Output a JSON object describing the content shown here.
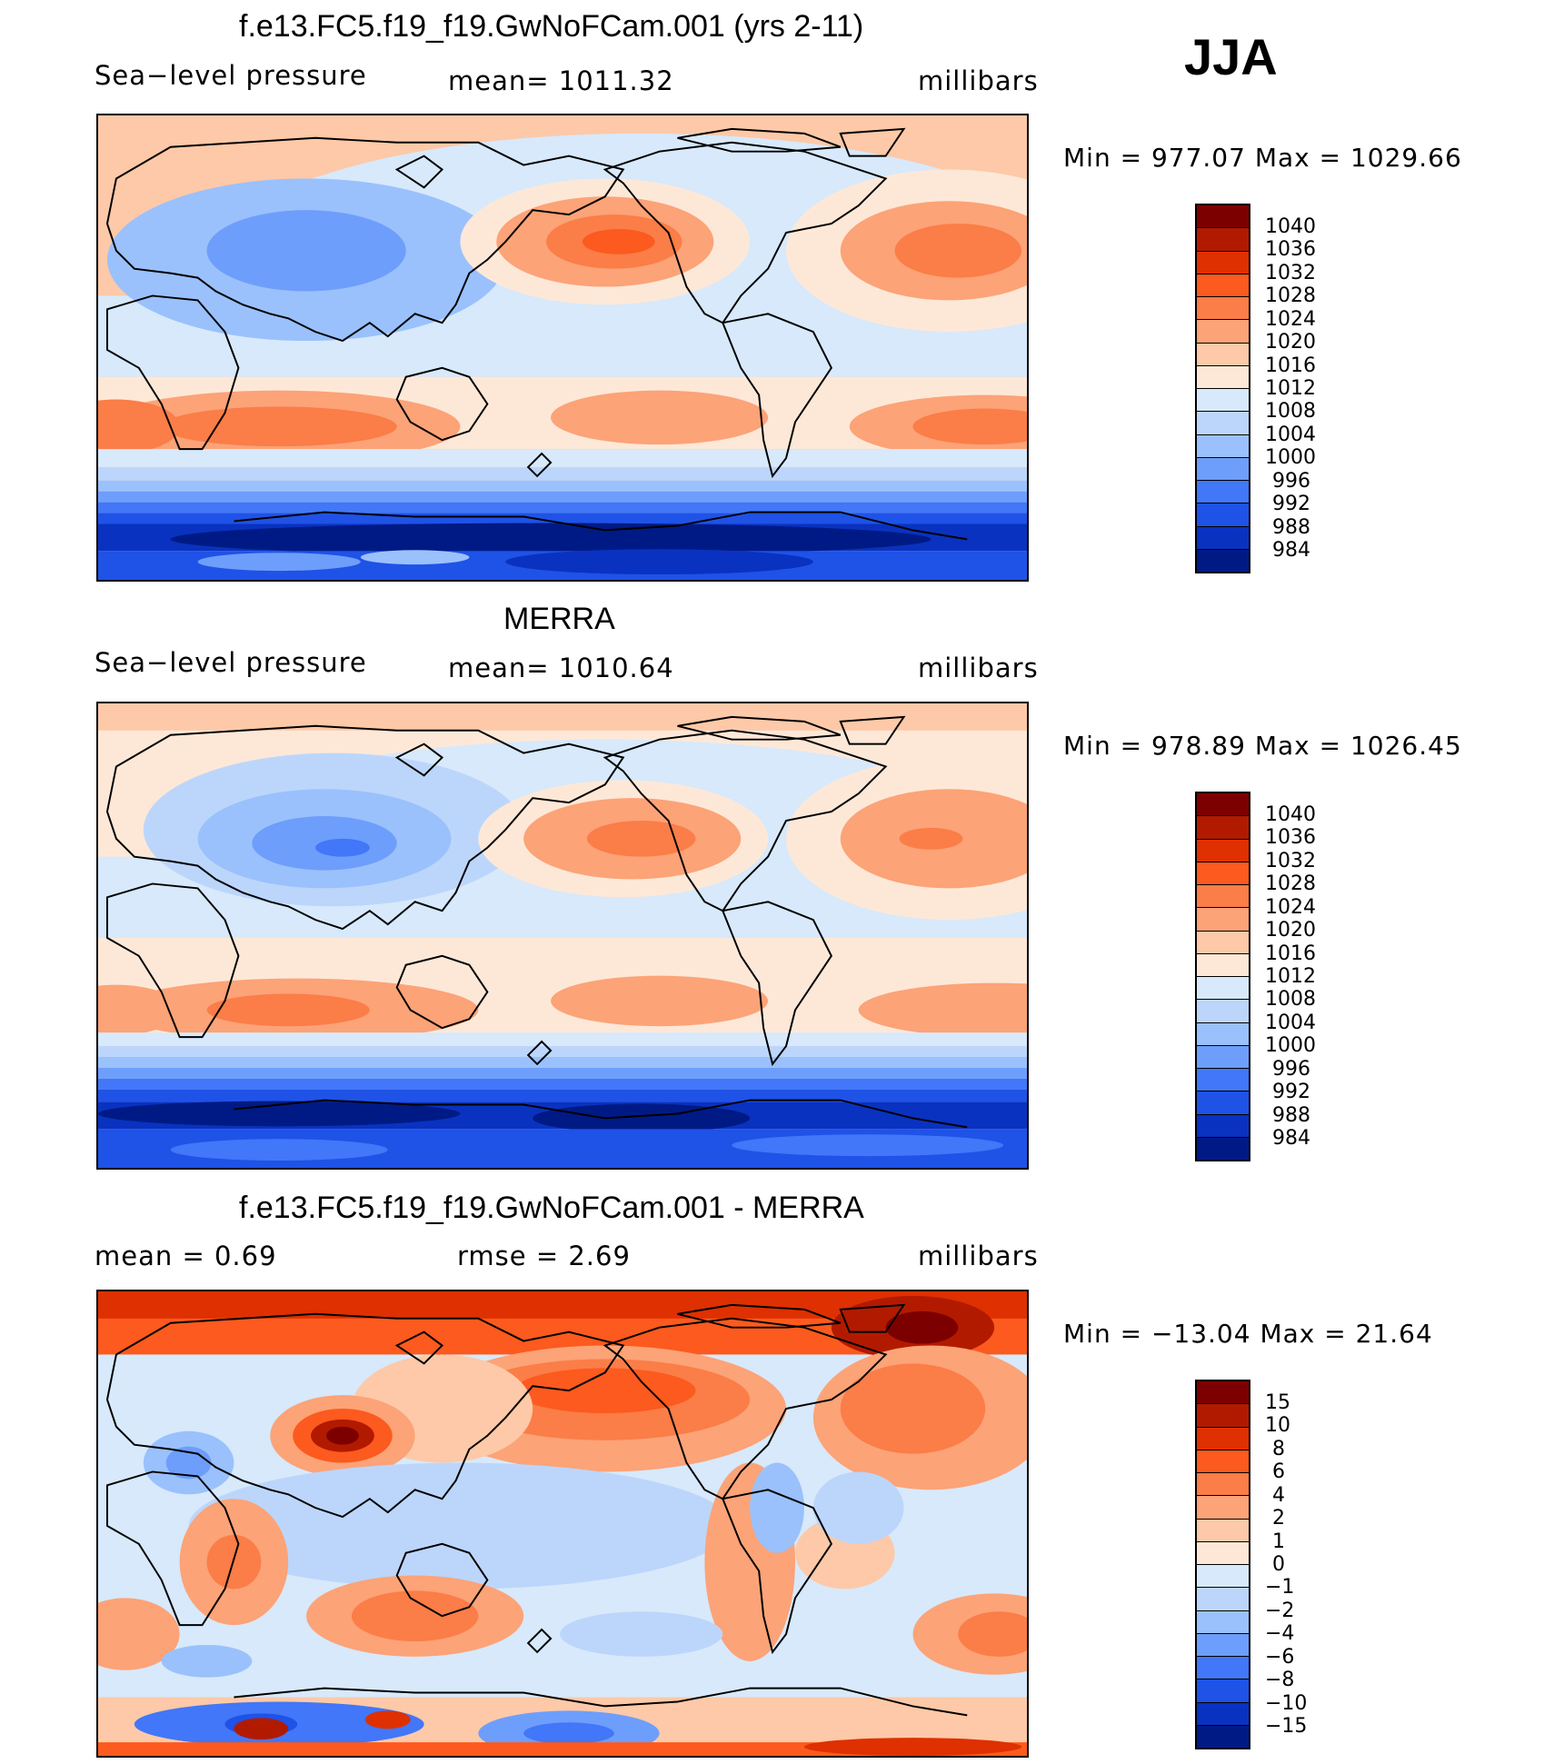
{
  "season": "JJA",
  "panels": [
    {
      "id": "model",
      "title": "f.e13.FC5.f19_f19.GwNoFCam.001 (yrs 2-11)",
      "left_label": "Sea−level pressure",
      "center_label": "mean=  1011.32",
      "right_label": "millibars",
      "minmax": "Min  =  977.07  Max  =  1029.66",
      "colorbar": {
        "labels": [
          "1040",
          "1036",
          "1032",
          "1028",
          "1024",
          "1020",
          "1016",
          "1012",
          "1008",
          "1004",
          "1000",
          "996",
          "992",
          "988",
          "984"
        ],
        "colors": [
          "#7d0000",
          "#b21a00",
          "#de3000",
          "#fc5a1e",
          "#fb7d48",
          "#fca377",
          "#fdc9a8",
          "#fde8d8",
          "#d7e9fb",
          "#bcd6fb",
          "#9ac1fc",
          "#6e9efb",
          "#4177f8",
          "#1f52e6",
          "#0a32c0",
          "#001a85"
        ]
      }
    },
    {
      "id": "obs",
      "title": "MERRA",
      "left_label": "Sea−level pressure",
      "center_label": "mean=  1010.64",
      "right_label": "millibars",
      "minmax": "Min  =  978.89  Max  =  1026.45",
      "colorbar": {
        "labels": [
          "1040",
          "1036",
          "1032",
          "1028",
          "1024",
          "1020",
          "1016",
          "1012",
          "1008",
          "1004",
          "1000",
          "996",
          "992",
          "988",
          "984"
        ],
        "colors": [
          "#7d0000",
          "#b21a00",
          "#de3000",
          "#fc5a1e",
          "#fb7d48",
          "#fca377",
          "#fdc9a8",
          "#fde8d8",
          "#d7e9fb",
          "#bcd6fb",
          "#9ac1fc",
          "#6e9efb",
          "#4177f8",
          "#1f52e6",
          "#0a32c0",
          "#001a85"
        ]
      }
    },
    {
      "id": "diff",
      "title": "f.e13.FC5.f19_f19.GwNoFCam.001 - MERRA",
      "left_label": "mean  =      0.69",
      "center_label": "rmse  =      2.69",
      "right_label": "millibars",
      "minmax": "Min  =  −13.04  Max  =     21.64",
      "colorbar": {
        "labels": [
          "15",
          "10",
          "8",
          "6",
          "4",
          "2",
          "1",
          "0",
          "−1",
          "−2",
          "−4",
          "−6",
          "−8",
          "−10",
          "−15"
        ],
        "colors": [
          "#7d0000",
          "#b21a00",
          "#de3000",
          "#fc5a1e",
          "#fb7d48",
          "#fca377",
          "#fdc9a8",
          "#fde8d8",
          "#d7e9fb",
          "#bcd6fb",
          "#9ac1fc",
          "#6e9efb",
          "#4177f8",
          "#1f52e6",
          "#0a32c0",
          "#001a85"
        ]
      }
    }
  ]
}
